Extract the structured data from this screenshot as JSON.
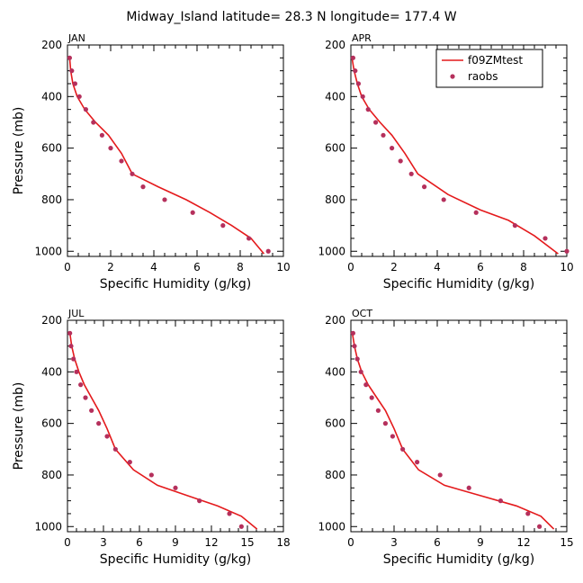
{
  "figure_title": "Midway_Island   latitude= 28.3 N longitude= 177.4 W",
  "legend": {
    "model_label": "f09ZMtest",
    "obs_label": "raobs",
    "placement": "top-right of APR panel"
  },
  "colors": {
    "model": "#e41a1c",
    "obs": "#b5305c"
  },
  "chart_data": [
    {
      "type": "line",
      "title": "JAN",
      "xlabel": "Specific Humidity (g/kg)",
      "ylabel": "Pressure (mb)",
      "xlim": [
        0,
        10
      ],
      "ylim": [
        200,
        1020
      ],
      "y_inverted": true,
      "x_ticks": [
        0,
        2,
        4,
        6,
        8,
        10
      ],
      "y_ticks": [
        200,
        400,
        600,
        800,
        1000
      ],
      "series": [
        {
          "name": "f09ZMtest",
          "style": "line",
          "x": [
            0.1,
            0.15,
            0.25,
            0.45,
            0.8,
            1.3,
            1.9,
            2.5,
            3.0,
            4.2,
            5.5,
            6.6,
            7.6,
            8.5,
            9.1
          ],
          "y": [
            250,
            300,
            350,
            400,
            450,
            500,
            550,
            620,
            700,
            750,
            800,
            850,
            900,
            950,
            1010
          ]
        },
        {
          "name": "raobs",
          "style": "markers",
          "x": [
            0.1,
            0.2,
            0.35,
            0.55,
            0.85,
            1.2,
            1.6,
            2.0,
            2.5,
            3.0,
            3.5,
            4.5,
            5.8,
            7.2,
            8.4,
            9.3
          ],
          "y": [
            250,
            300,
            350,
            400,
            450,
            500,
            550,
            600,
            650,
            700,
            750,
            800,
            850,
            900,
            950,
            1000
          ]
        }
      ]
    },
    {
      "type": "line",
      "title": "APR",
      "xlabel": "Specific Humidity (g/kg)",
      "ylabel": "",
      "xlim": [
        0,
        10
      ],
      "ylim": [
        200,
        1020
      ],
      "y_inverted": true,
      "x_ticks": [
        0,
        2,
        4,
        6,
        8,
        10
      ],
      "y_ticks": [
        200,
        400,
        600,
        800,
        1000
      ],
      "series": [
        {
          "name": "f09ZMtest",
          "style": "line",
          "x": [
            0.05,
            0.15,
            0.3,
            0.5,
            0.85,
            1.35,
            1.9,
            2.5,
            3.1,
            4.5,
            6.0,
            7.3,
            8.5,
            9.6
          ],
          "y": [
            250,
            300,
            350,
            400,
            450,
            500,
            550,
            620,
            700,
            780,
            840,
            880,
            940,
            1010
          ]
        },
        {
          "name": "raobs",
          "style": "markers",
          "x": [
            0.1,
            0.2,
            0.35,
            0.55,
            0.8,
            1.15,
            1.5,
            1.9,
            2.3,
            2.8,
            3.4,
            4.3,
            5.8,
            7.6,
            9.0,
            10.0
          ],
          "y": [
            250,
            300,
            350,
            400,
            450,
            500,
            550,
            600,
            650,
            700,
            750,
            800,
            850,
            900,
            950,
            1000
          ]
        }
      ]
    },
    {
      "type": "line",
      "title": "JUL",
      "xlabel": "Specific Humidity (g/kg)",
      "ylabel": "Pressure (mb)",
      "xlim": [
        0,
        18
      ],
      "ylim": [
        200,
        1020
      ],
      "y_inverted": true,
      "x_ticks": [
        0,
        3,
        6,
        9,
        12,
        15,
        18
      ],
      "y_ticks": [
        200,
        400,
        600,
        800,
        1000
      ],
      "series": [
        {
          "name": "f09ZMtest",
          "style": "line",
          "x": [
            0.2,
            0.35,
            0.6,
            0.95,
            1.4,
            2.0,
            2.6,
            3.3,
            4.0,
            5.5,
            7.5,
            10.0,
            12.5,
            14.5,
            15.8
          ],
          "y": [
            250,
            300,
            350,
            400,
            450,
            500,
            550,
            620,
            700,
            780,
            840,
            880,
            920,
            960,
            1010
          ]
        },
        {
          "name": "raobs",
          "style": "markers",
          "x": [
            0.2,
            0.3,
            0.5,
            0.75,
            1.1,
            1.5,
            2.0,
            2.6,
            3.3,
            4.0,
            5.2,
            7.0,
            9.0,
            11.0,
            13.5,
            14.5
          ],
          "y": [
            250,
            300,
            350,
            400,
            450,
            500,
            550,
            600,
            650,
            700,
            750,
            800,
            850,
            900,
            950,
            1000
          ]
        }
      ]
    },
    {
      "type": "line",
      "title": "OCT",
      "xlabel": "Specific Humidity (g/kg)",
      "ylabel": "",
      "xlim": [
        0,
        15
      ],
      "ylim": [
        200,
        1020
      ],
      "y_inverted": true,
      "x_ticks": [
        0,
        3,
        6,
        9,
        12,
        15
      ],
      "y_ticks": [
        200,
        400,
        600,
        800,
        1000
      ],
      "series": [
        {
          "name": "f09ZMtest",
          "style": "line",
          "x": [
            0.1,
            0.25,
            0.45,
            0.75,
            1.2,
            1.8,
            2.4,
            3.0,
            3.6,
            4.7,
            6.5,
            9.0,
            11.5,
            13.2,
            14.1
          ],
          "y": [
            250,
            300,
            350,
            400,
            450,
            500,
            550,
            620,
            700,
            780,
            840,
            880,
            920,
            960,
            1010
          ]
        },
        {
          "name": "raobs",
          "style": "markers",
          "x": [
            0.15,
            0.25,
            0.45,
            0.7,
            1.05,
            1.45,
            1.9,
            2.4,
            2.9,
            3.6,
            4.6,
            6.2,
            8.2,
            10.4,
            12.3,
            13.1
          ],
          "y": [
            250,
            300,
            350,
            400,
            450,
            500,
            550,
            600,
            650,
            700,
            750,
            800,
            850,
            900,
            950,
            1000
          ]
        }
      ]
    }
  ]
}
